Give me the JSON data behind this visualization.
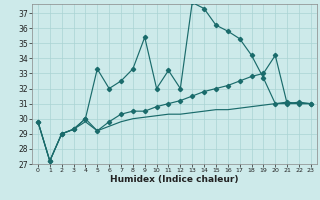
{
  "xlabel": "Humidex (Indice chaleur)",
  "bg_color": "#cdeaea",
  "line_color": "#1a6b6b",
  "grid_color": "#aad4d4",
  "xlim": [
    -0.5,
    23.5
  ],
  "ylim": [
    27,
    37.6
  ],
  "yticks": [
    27,
    28,
    29,
    30,
    31,
    32,
    33,
    34,
    35,
    36,
    37
  ],
  "xticks": [
    0,
    1,
    2,
    3,
    4,
    5,
    6,
    7,
    8,
    9,
    10,
    11,
    12,
    13,
    14,
    15,
    16,
    17,
    18,
    19,
    20,
    21,
    22,
    23
  ],
  "s1_x": [
    0,
    1,
    2,
    3,
    4,
    5,
    6,
    7,
    8,
    9,
    10,
    11,
    12,
    13,
    14,
    15,
    16,
    17,
    18,
    19,
    20,
    21,
    22,
    23
  ],
  "s1_y": [
    29.8,
    27.2,
    29.0,
    29.3,
    30.0,
    33.3,
    32.0,
    32.5,
    33.3,
    35.4,
    32.0,
    33.2,
    32.0,
    37.7,
    37.3,
    36.2,
    35.8,
    35.3,
    34.2,
    32.7,
    31.0,
    31.1,
    31.0,
    31.0
  ],
  "s2_x": [
    0,
    1,
    2,
    3,
    4,
    5,
    6,
    7,
    8,
    9,
    10,
    11,
    12,
    13,
    14,
    15,
    16,
    17,
    18,
    19,
    20,
    21,
    22,
    23
  ],
  "s2_y": [
    29.8,
    27.2,
    29.0,
    29.3,
    30.0,
    29.2,
    29.8,
    30.3,
    30.5,
    30.5,
    30.8,
    31.0,
    31.2,
    31.5,
    31.8,
    32.0,
    32.2,
    32.5,
    32.8,
    33.0,
    34.2,
    31.0,
    31.1,
    31.0
  ],
  "s3_x": [
    0,
    1,
    2,
    3,
    4,
    5,
    6,
    7,
    8,
    9,
    10,
    11,
    12,
    13,
    14,
    15,
    16,
    17,
    18,
    19,
    20,
    21,
    22,
    23
  ],
  "s3_y": [
    29.8,
    27.2,
    29.0,
    29.3,
    29.8,
    29.2,
    29.5,
    29.8,
    30.0,
    30.1,
    30.2,
    30.3,
    30.3,
    30.4,
    30.5,
    30.6,
    30.6,
    30.7,
    30.8,
    30.9,
    31.0,
    31.0,
    31.0,
    31.0
  ]
}
